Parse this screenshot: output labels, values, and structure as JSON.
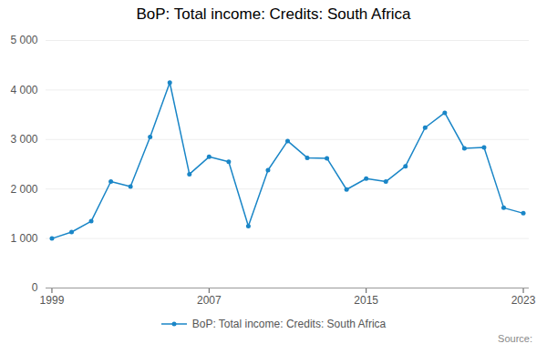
{
  "chart_data": {
    "type": "line",
    "title": "BoP: Total income: Credits: South Africa",
    "x": [
      1999,
      2000,
      2001,
      2002,
      2003,
      2004,
      2005,
      2006,
      2007,
      2008,
      2009,
      2010,
      2011,
      2012,
      2013,
      2014,
      2015,
      2016,
      2017,
      2018,
      2019,
      2020,
      2021,
      2022,
      2023
    ],
    "series": [
      {
        "name": "BoP: Total income: Credits: South Africa",
        "color": "#1a86c7",
        "marker": "circle",
        "values": [
          1000,
          1130,
          1350,
          2150,
          2050,
          3050,
          4150,
          2300,
          2650,
          2550,
          1250,
          2380,
          2970,
          2630,
          2620,
          1990,
          2210,
          2150,
          2460,
          3240,
          3540,
          2820,
          2840,
          1620,
          1510
        ]
      }
    ],
    "xlim": [
      1998.7,
      2023.3
    ],
    "xticks": [
      1999,
      2007,
      2015,
      2023
    ],
    "ylim": [
      0,
      5000
    ],
    "yticks": [
      0,
      {
        "value": 1000,
        "label": "1 000"
      },
      {
        "value": 2000,
        "label": "2 000"
      },
      {
        "value": 3000,
        "label": "3 000"
      },
      {
        "value": 4000,
        "label": "4 000"
      },
      {
        "value": 5000,
        "label": "5 000"
      }
    ],
    "grid": true,
    "legend": "bottom",
    "annotations": [
      "Source:"
    ]
  }
}
